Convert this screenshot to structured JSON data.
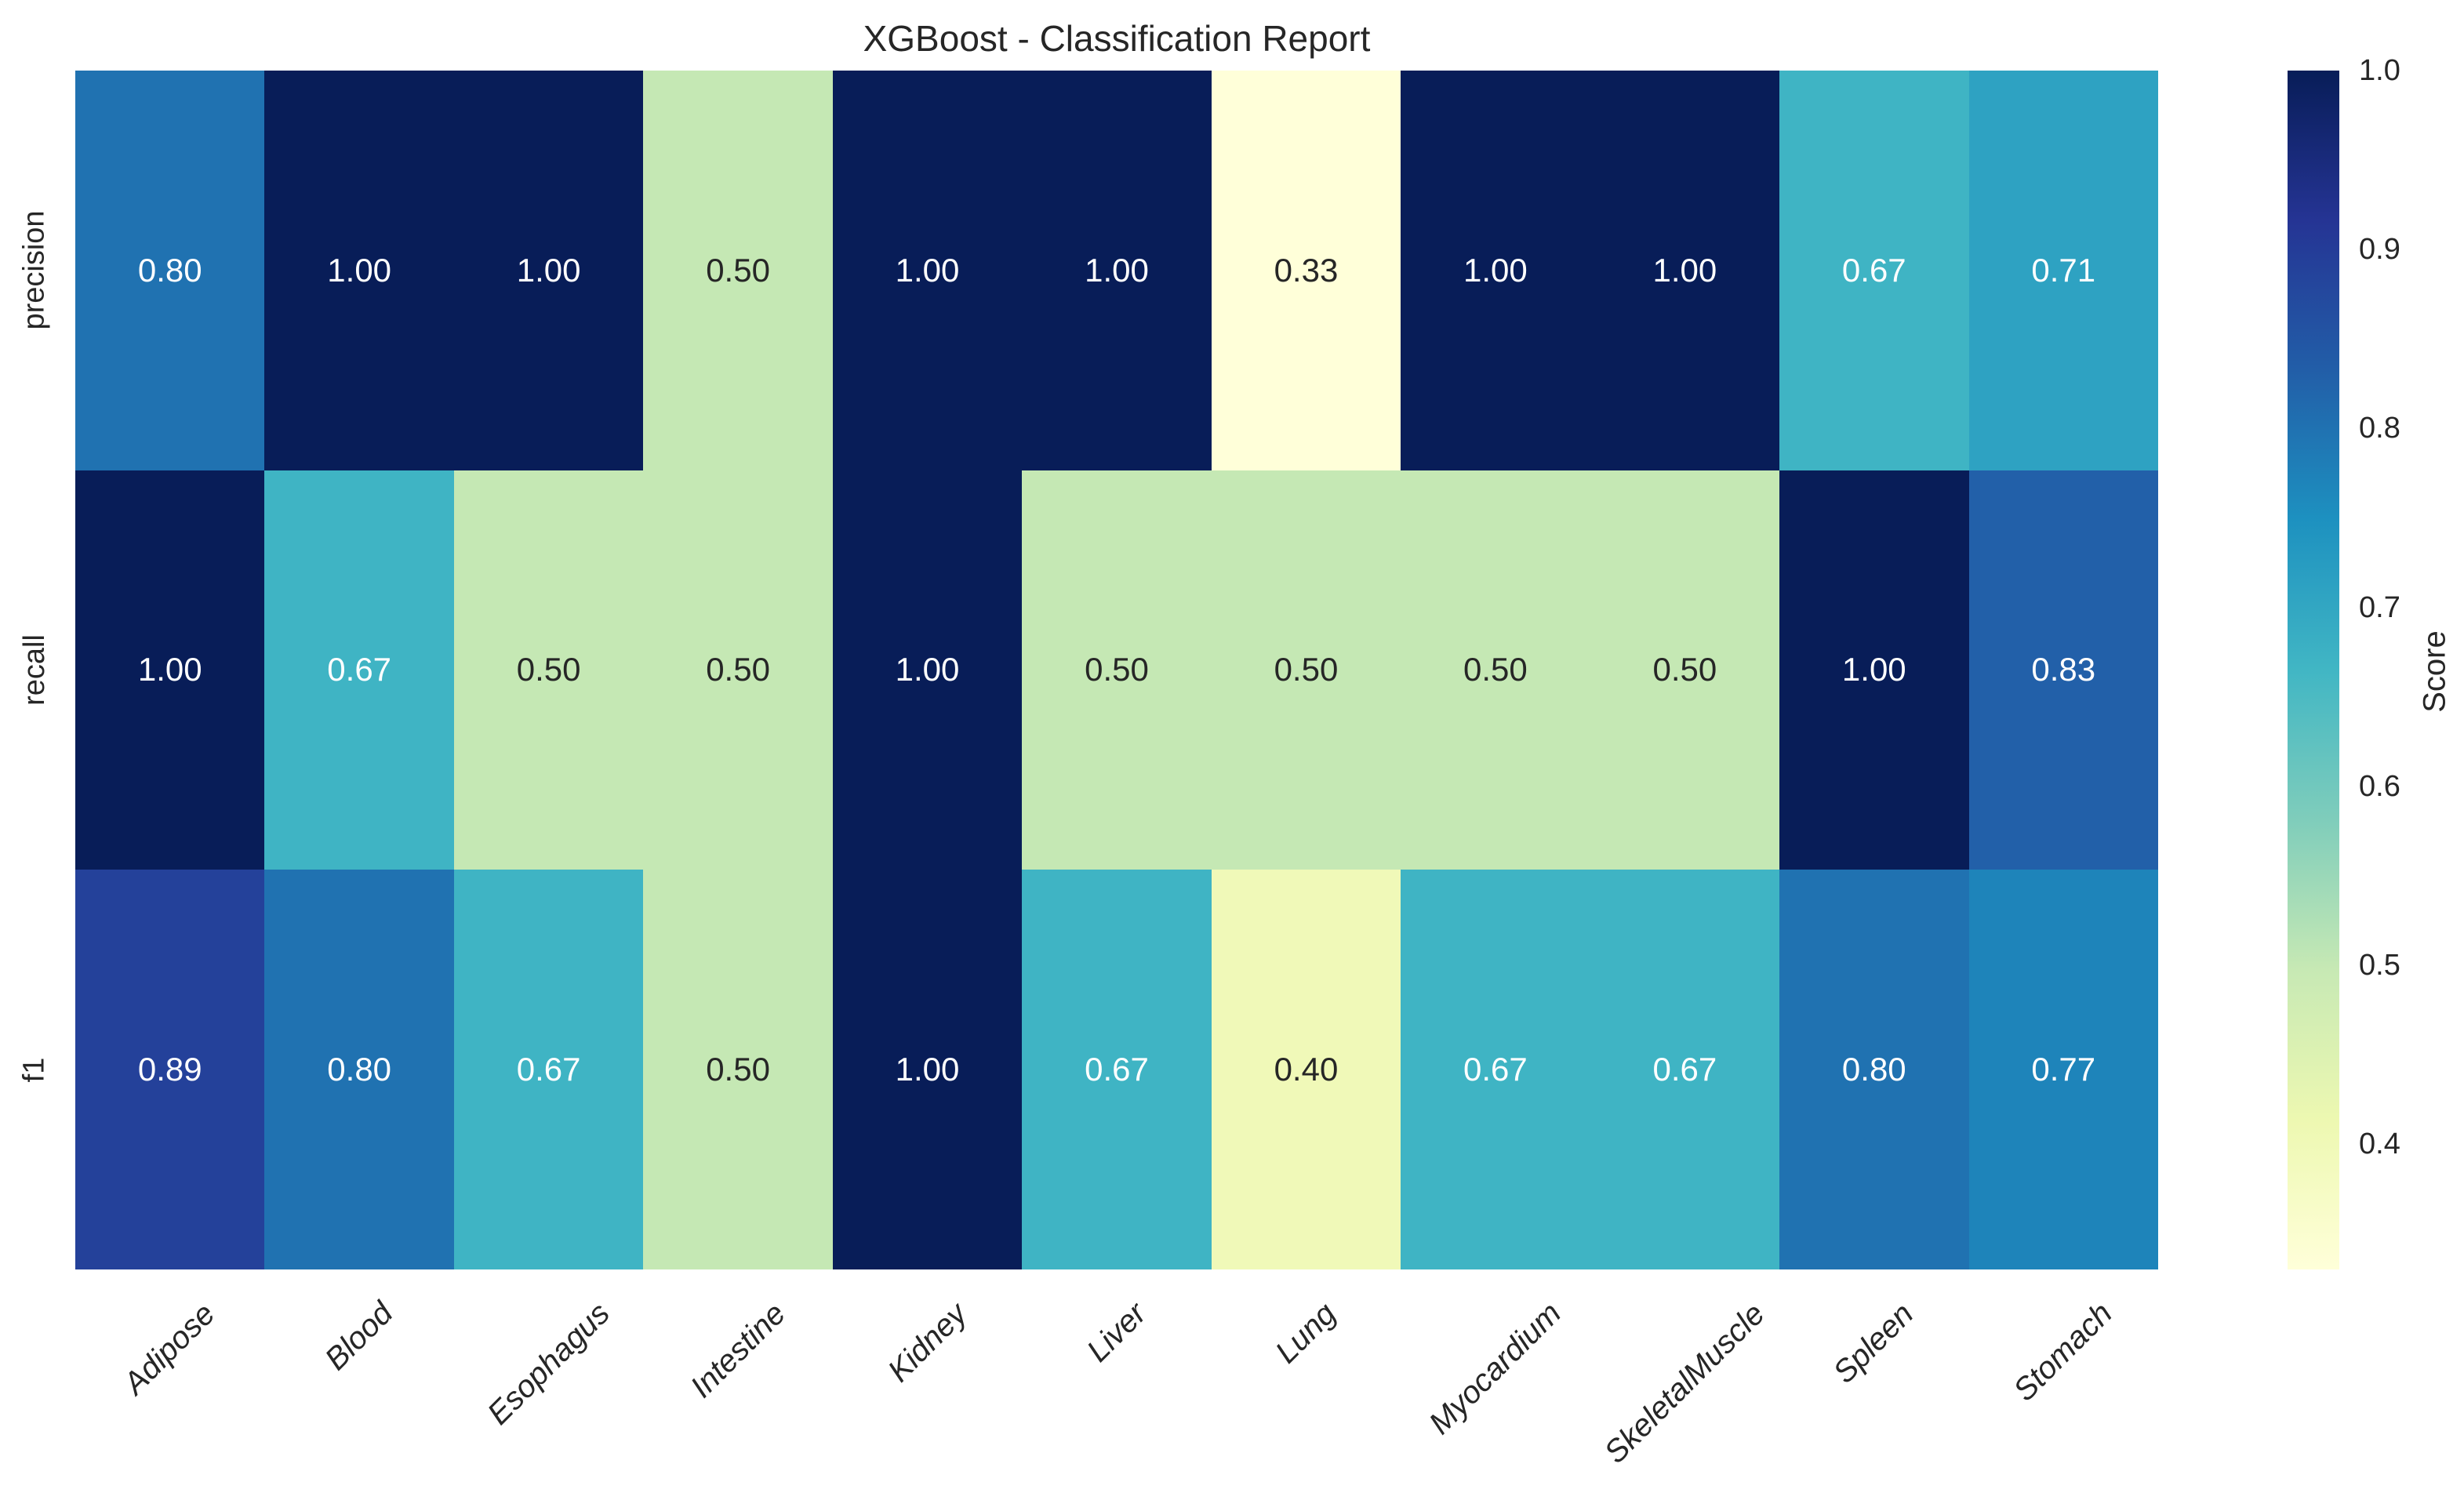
{
  "title": "XGBoost - Classification Report",
  "colors": {
    "background": "#ffffff",
    "text": "#262626",
    "annotation_dark": "#262626",
    "annotation_light": "#ffffff"
  },
  "chart_data": {
    "type": "heatmap",
    "title": "XGBoost - Classification Report",
    "rows": [
      "precision",
      "recall",
      "f1"
    ],
    "columns": [
      "Adipose",
      "Blood",
      "Esophagus",
      "Intestine",
      "Kidney",
      "Liver",
      "Lung",
      "Myocardium",
      "SkeletalMuscle",
      "Spleen",
      "Stomach"
    ],
    "values": [
      [
        0.8,
        1.0,
        1.0,
        0.5,
        1.0,
        1.0,
        0.33,
        1.0,
        1.0,
        0.67,
        0.71
      ],
      [
        1.0,
        0.67,
        0.5,
        0.5,
        1.0,
        0.5,
        0.5,
        0.5,
        0.5,
        1.0,
        0.83
      ],
      [
        0.89,
        0.8,
        0.67,
        0.5,
        1.0,
        0.67,
        0.4,
        0.67,
        0.67,
        0.8,
        0.77
      ]
    ],
    "value_decimals": 2,
    "colormap_name": "YlGnBu",
    "colormap_stops": [
      "#ffffd9",
      "#edf8b1",
      "#c7e9b4",
      "#7fcdbb",
      "#41b6c4",
      "#1d91c0",
      "#225ea8",
      "#253494",
      "#081d58"
    ],
    "vmin": 0.33,
    "vmax": 1.0,
    "grid": false,
    "colorbar": {
      "label": "Score",
      "ticks": [
        {
          "value": 1.0,
          "label": "1.0"
        },
        {
          "value": 0.9,
          "label": "0.9"
        },
        {
          "value": 0.8,
          "label": "0.8"
        },
        {
          "value": 0.7,
          "label": "0.7"
        },
        {
          "value": 0.6,
          "label": "0.6"
        },
        {
          "value": 0.5,
          "label": "0.5"
        },
        {
          "value": 0.4,
          "label": "0.4"
        }
      ]
    }
  }
}
